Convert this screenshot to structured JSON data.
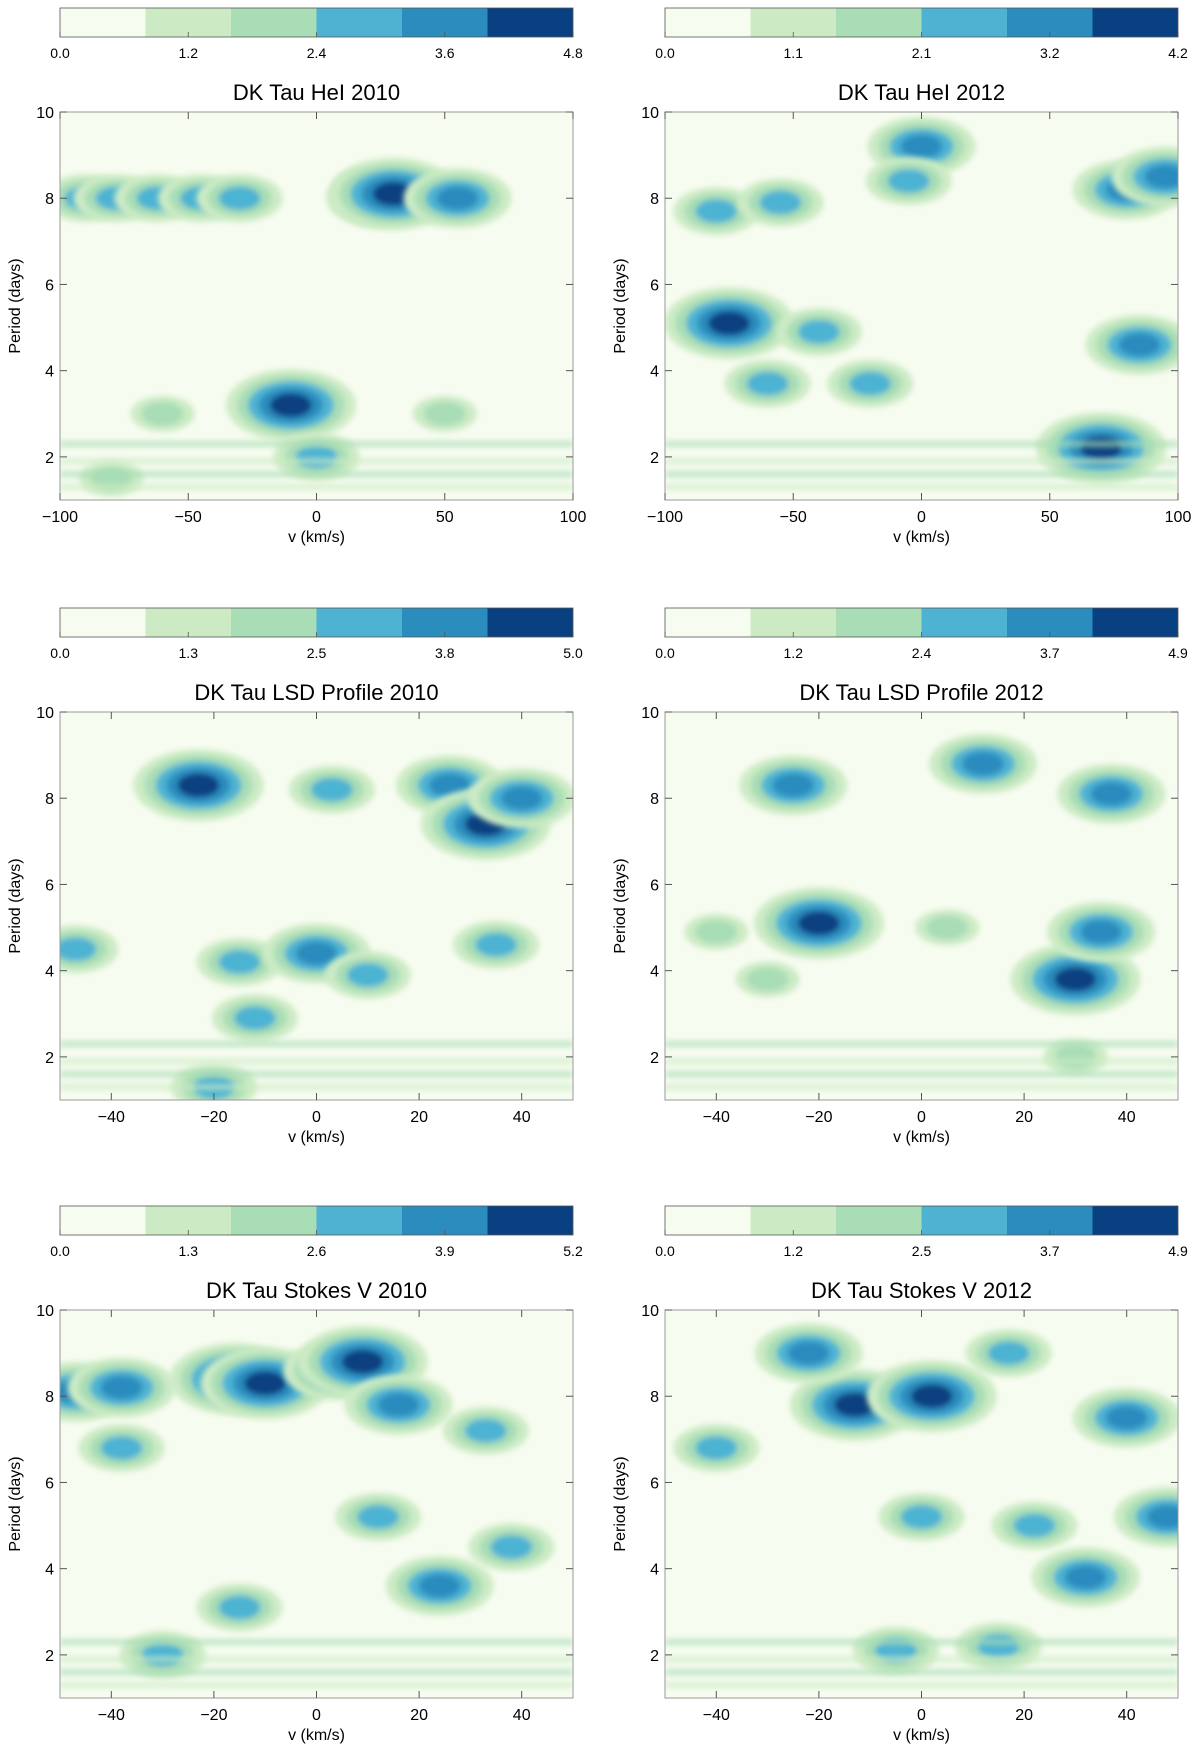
{
  "colors": {
    "levels": [
      "#f7fcf0",
      "#ccebc5",
      "#a8ddb5",
      "#4eb3d3",
      "#2b8cbe",
      "#084081"
    ],
    "axis": "#999999",
    "text": "#000000"
  },
  "chart_data": [
    {
      "type": "heatmap",
      "title": "DK Tau HeI 2010",
      "xlabel": "v (km/s)",
      "ylabel": "Period (days)",
      "xlim": [
        -100,
        100
      ],
      "ylim": [
        1,
        10
      ],
      "xticks": [
        -100,
        -50,
        0,
        50,
        100
      ],
      "xtick_labels": [
        "−100",
        "−50",
        "0",
        "50",
        "100"
      ],
      "yticks": [
        2,
        4,
        6,
        8,
        10
      ],
      "ytick_labels": [
        "2",
        "4",
        "6",
        "8",
        "10"
      ],
      "colorbar_ticks": [
        "0.0",
        "1.2",
        "2.4",
        "3.6",
        "4.8"
      ],
      "features": [
        {
          "v": -90,
          "p": 8.0,
          "level": 3
        },
        {
          "v": -78,
          "p": 8.0,
          "level": 3
        },
        {
          "v": -62,
          "p": 8.0,
          "level": 3
        },
        {
          "v": -45,
          "p": 8.0,
          "level": 3
        },
        {
          "v": -30,
          "p": 8.0,
          "level": 3
        },
        {
          "v": 20,
          "p": 8.3,
          "level": 2
        },
        {
          "v": 25,
          "p": 8.0,
          "level": 4
        },
        {
          "v": 30,
          "p": 8.1,
          "level": 5
        },
        {
          "v": 55,
          "p": 8.0,
          "level": 4
        },
        {
          "v": -10,
          "p": 3.2,
          "level": 5
        },
        {
          "v": -60,
          "p": 3.0,
          "level": 2
        },
        {
          "v": 50,
          "p": 3.0,
          "level": 2
        },
        {
          "v": 0,
          "p": 2.0,
          "level": 3
        },
        {
          "v": -80,
          "p": 1.5,
          "level": 2
        }
      ]
    },
    {
      "type": "heatmap",
      "title": "DK Tau HeI 2012",
      "xlabel": "v (km/s)",
      "ylabel": "Period (days)",
      "xlim": [
        -100,
        100
      ],
      "ylim": [
        1,
        10
      ],
      "xticks": [
        -100,
        -50,
        0,
        50,
        100
      ],
      "xtick_labels": [
        "−100",
        "−50",
        "0",
        "50",
        "100"
      ],
      "yticks": [
        2,
        4,
        6,
        8,
        10
      ],
      "ytick_labels": [
        "2",
        "4",
        "6",
        "8",
        "10"
      ],
      "colorbar_ticks": [
        "0.0",
        "1.1",
        "2.1",
        "3.2",
        "4.2"
      ],
      "features": [
        {
          "v": -80,
          "p": 7.7,
          "level": 3
        },
        {
          "v": -55,
          "p": 7.9,
          "level": 3
        },
        {
          "v": 0,
          "p": 9.2,
          "level": 4
        },
        {
          "v": -5,
          "p": 8.4,
          "level": 3
        },
        {
          "v": -75,
          "p": 5.1,
          "level": 5
        },
        {
          "v": -40,
          "p": 4.9,
          "level": 3
        },
        {
          "v": -60,
          "p": 3.7,
          "level": 3
        },
        {
          "v": -20,
          "p": 3.7,
          "level": 3
        },
        {
          "v": 85,
          "p": 4.6,
          "level": 4
        },
        {
          "v": 80,
          "p": 8.2,
          "level": 4
        },
        {
          "v": 70,
          "p": 2.2,
          "level": 5
        },
        {
          "v": 95,
          "p": 8.5,
          "level": 4
        }
      ]
    },
    {
      "type": "heatmap",
      "title": "DK Tau LSD Profile 2010",
      "xlabel": "v (km/s)",
      "ylabel": "Period (days)",
      "xlim": [
        -50,
        50
      ],
      "ylim": [
        1,
        10
      ],
      "xticks": [
        -40,
        -20,
        0,
        20,
        40
      ],
      "xtick_labels": [
        "−40",
        "−20",
        "0",
        "20",
        "40"
      ],
      "yticks": [
        2,
        4,
        6,
        8,
        10
      ],
      "ytick_labels": [
        "2",
        "4",
        "6",
        "8",
        "10"
      ],
      "colorbar_ticks": [
        "0.0",
        "1.3",
        "2.5",
        "3.8",
        "5.0"
      ],
      "features": [
        {
          "v": -23,
          "p": 8.3,
          "level": 5
        },
        {
          "v": 3,
          "p": 8.2,
          "level": 3
        },
        {
          "v": 26,
          "p": 8.3,
          "level": 4
        },
        {
          "v": 33,
          "p": 7.4,
          "level": 5
        },
        {
          "v": 40,
          "p": 8.0,
          "level": 4
        },
        {
          "v": -15,
          "p": 4.2,
          "level": 3
        },
        {
          "v": 0,
          "p": 4.4,
          "level": 4
        },
        {
          "v": 10,
          "p": 3.9,
          "level": 3
        },
        {
          "v": -12,
          "p": 2.9,
          "level": 3
        },
        {
          "v": -47,
          "p": 4.5,
          "level": 3
        },
        {
          "v": 35,
          "p": 4.6,
          "level": 3
        },
        {
          "v": -20,
          "p": 1.3,
          "level": 3
        }
      ]
    },
    {
      "type": "heatmap",
      "title": "DK Tau LSD Profile 2012",
      "xlabel": "v (km/s)",
      "ylabel": "Period (days)",
      "xlim": [
        -50,
        50
      ],
      "ylim": [
        1,
        10
      ],
      "xticks": [
        -40,
        -20,
        0,
        20,
        40
      ],
      "xtick_labels": [
        "−40",
        "−20",
        "0",
        "20",
        "40"
      ],
      "yticks": [
        2,
        4,
        6,
        8,
        10
      ],
      "ytick_labels": [
        "2",
        "4",
        "6",
        "8",
        "10"
      ],
      "colorbar_ticks": [
        "0.0",
        "1.2",
        "2.4",
        "3.7",
        "4.9"
      ],
      "features": [
        {
          "v": -25,
          "p": 8.3,
          "level": 4
        },
        {
          "v": 12,
          "p": 8.8,
          "level": 4
        },
        {
          "v": 37,
          "p": 8.1,
          "level": 4
        },
        {
          "v": -20,
          "p": 5.1,
          "level": 5
        },
        {
          "v": 5,
          "p": 5.0,
          "level": 2
        },
        {
          "v": 30,
          "p": 3.8,
          "level": 5
        },
        {
          "v": 35,
          "p": 4.9,
          "level": 4
        },
        {
          "v": -40,
          "p": 4.9,
          "level": 2
        },
        {
          "v": -30,
          "p": 3.8,
          "level": 2
        },
        {
          "v": 30,
          "p": 2.0,
          "level": 2
        }
      ]
    },
    {
      "type": "heatmap",
      "title": "DK Tau Stokes V 2010",
      "xlabel": "v (km/s)",
      "ylabel": "Period (days)",
      "xlim": [
        -50,
        50
      ],
      "ylim": [
        1,
        10
      ],
      "xticks": [
        -40,
        -20,
        0,
        20,
        40
      ],
      "xtick_labels": [
        "−40",
        "−20",
        "0",
        "20",
        "40"
      ],
      "yticks": [
        2,
        4,
        6,
        8,
        10
      ],
      "ytick_labels": [
        "2",
        "4",
        "6",
        "8",
        "10"
      ],
      "colorbar_ticks": [
        "0.0",
        "1.3",
        "2.6",
        "3.9",
        "5.2"
      ],
      "features": [
        {
          "v": -16,
          "p": 8.4,
          "level": 5
        },
        {
          "v": -10,
          "p": 8.3,
          "level": 5
        },
        {
          "v": 4,
          "p": 8.6,
          "level": 4
        },
        {
          "v": 9,
          "p": 8.8,
          "level": 5
        },
        {
          "v": 16,
          "p": 7.8,
          "level": 4
        },
        {
          "v": -47,
          "p": 8.1,
          "level": 4
        },
        {
          "v": -38,
          "p": 8.2,
          "level": 4
        },
        {
          "v": -38,
          "p": 6.8,
          "level": 3
        },
        {
          "v": 33,
          "p": 7.2,
          "level": 3
        },
        {
          "v": 12,
          "p": 5.2,
          "level": 3
        },
        {
          "v": -15,
          "p": 3.1,
          "level": 3
        },
        {
          "v": 24,
          "p": 3.6,
          "level": 4
        },
        {
          "v": 38,
          "p": 4.5,
          "level": 3
        },
        {
          "v": -30,
          "p": 2.0,
          "level": 3
        }
      ]
    },
    {
      "type": "heatmap",
      "title": "DK Tau Stokes V 2012",
      "xlabel": "v (km/s)",
      "ylabel": "Period (days)",
      "xlim": [
        -50,
        50
      ],
      "ylim": [
        1,
        10
      ],
      "xticks": [
        -40,
        -20,
        0,
        20,
        40
      ],
      "xtick_labels": [
        "−40",
        "−20",
        "0",
        "20",
        "40"
      ],
      "yticks": [
        2,
        4,
        6,
        8,
        10
      ],
      "ytick_labels": [
        "2",
        "4",
        "6",
        "8",
        "10"
      ],
      "colorbar_ticks": [
        "0.0",
        "1.2",
        "2.5",
        "3.7",
        "4.9"
      ],
      "features": [
        {
          "v": -13,
          "p": 7.8,
          "level": 5
        },
        {
          "v": 2,
          "p": 8.0,
          "level": 5
        },
        {
          "v": -22,
          "p": 9.0,
          "level": 4
        },
        {
          "v": 17,
          "p": 9.0,
          "level": 3
        },
        {
          "v": 40,
          "p": 7.5,
          "level": 4
        },
        {
          "v": 48,
          "p": 5.2,
          "level": 4
        },
        {
          "v": 32,
          "p": 3.8,
          "level": 4
        },
        {
          "v": 22,
          "p": 5.0,
          "level": 3
        },
        {
          "v": 0,
          "p": 5.2,
          "level": 3
        },
        {
          "v": -40,
          "p": 6.8,
          "level": 3
        },
        {
          "v": -5,
          "p": 2.1,
          "level": 3
        },
        {
          "v": 15,
          "p": 2.2,
          "level": 3
        }
      ]
    }
  ]
}
